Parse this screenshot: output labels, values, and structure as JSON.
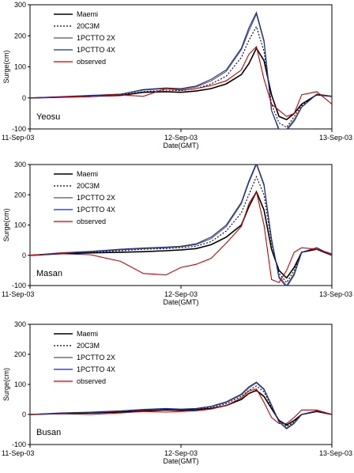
{
  "legend": {
    "entries": [
      {
        "label": "Maemi",
        "color": "#000000",
        "dash": ""
      },
      {
        "label": "20C3M",
        "color": "#000000",
        "dash": "2,2"
      },
      {
        "label": "1PCTTO 2X",
        "color": "#555555",
        "dash": ""
      },
      {
        "label": "1PCTTO 4X",
        "color": "#1a2a9a",
        "dash": ""
      },
      {
        "label": "observed",
        "color": "#cc0000",
        "dash": ""
      }
    ]
  },
  "chart_data": [
    {
      "type": "line",
      "station": "Yeosu",
      "ylabel": "Surge(cm)",
      "xlabel": "Date(GMT)",
      "ylim": [
        -100,
        300
      ],
      "yticks": [
        "300",
        "200",
        "100",
        "0",
        "-100"
      ],
      "xlim": [
        0,
        2
      ],
      "xticks": [
        "11-Sep-03",
        "12-Sep-03",
        "13-Sep-03"
      ],
      "x": [
        0,
        0.2,
        0.4,
        0.6,
        0.75,
        0.9,
        1.0,
        1.1,
        1.2,
        1.3,
        1.4,
        1.45,
        1.5,
        1.55,
        1.6,
        1.65,
        1.7,
        1.75,
        1.8,
        1.9,
        2.0
      ],
      "series": [
        {
          "name": "Maemi",
          "values": [
            0,
            2,
            5,
            8,
            18,
            20,
            18,
            22,
            30,
            45,
            75,
            110,
            160,
            120,
            10,
            -60,
            -70,
            -50,
            -20,
            10,
            5
          ]
        },
        {
          "name": "20C3M",
          "values": [
            0,
            3,
            6,
            10,
            20,
            25,
            23,
            30,
            45,
            70,
            130,
            185,
            230,
            150,
            -20,
            -80,
            -95,
            -60,
            -25,
            10,
            5
          ]
        },
        {
          "name": "1PCTTO 2X",
          "values": [
            0,
            3,
            7,
            12,
            25,
            30,
            28,
            35,
            55,
            85,
            155,
            215,
            270,
            180,
            -40,
            -100,
            -100,
            -70,
            -30,
            12,
            5
          ]
        },
        {
          "name": "1PCTTO 4X",
          "values": [
            0,
            4,
            8,
            12,
            27,
            32,
            30,
            38,
            60,
            90,
            160,
            225,
            275,
            185,
            -40,
            -105,
            -105,
            -75,
            -30,
            12,
            5
          ]
        },
        {
          "name": "observed",
          "values": [
            0,
            2,
            4,
            10,
            5,
            30,
            25,
            30,
            40,
            55,
            90,
            140,
            165,
            60,
            -20,
            -40,
            -60,
            -50,
            10,
            20,
            -20
          ]
        }
      ]
    },
    {
      "type": "line",
      "station": "Masan",
      "ylabel": "Surge(cm)",
      "xlabel": "Date(GMT)",
      "ylim": [
        -100,
        300
      ],
      "yticks": [
        "300",
        "200",
        "100",
        "0",
        "-100"
      ],
      "xlim": [
        0,
        2
      ],
      "xticks": [
        "11-Sep-03",
        "12-Sep-03",
        "13-Sep-03"
      ],
      "x": [
        0,
        0.2,
        0.4,
        0.6,
        0.75,
        0.9,
        1.0,
        1.1,
        1.2,
        1.3,
        1.4,
        1.45,
        1.5,
        1.55,
        1.6,
        1.65,
        1.7,
        1.75,
        1.8,
        1.9,
        2.0
      ],
      "series": [
        {
          "name": "Maemi",
          "values": [
            0,
            5,
            8,
            10,
            12,
            15,
            18,
            22,
            35,
            60,
            100,
            160,
            210,
            150,
            20,
            -50,
            -75,
            -40,
            10,
            20,
            0
          ]
        },
        {
          "name": "20C3M",
          "values": [
            0,
            6,
            10,
            15,
            20,
            22,
            25,
            30,
            45,
            80,
            140,
            200,
            260,
            200,
            40,
            -60,
            -90,
            -50,
            10,
            25,
            0
          ]
        },
        {
          "name": "1PCTTO 2X",
          "values": [
            0,
            7,
            12,
            18,
            22,
            25,
            28,
            35,
            55,
            95,
            170,
            240,
            300,
            230,
            50,
            -70,
            -100,
            -60,
            10,
            25,
            0
          ]
        },
        {
          "name": "1PCTTO 4X",
          "values": [
            0,
            8,
            13,
            20,
            24,
            27,
            30,
            38,
            60,
            100,
            175,
            245,
            305,
            235,
            55,
            -75,
            -105,
            -65,
            10,
            25,
            0
          ]
        },
        {
          "name": "observed",
          "values": [
            0,
            5,
            2,
            -20,
            -60,
            -65,
            -40,
            -30,
            -10,
            40,
            95,
            170,
            210,
            100,
            -80,
            -90,
            -50,
            10,
            25,
            20,
            5
          ]
        }
      ]
    },
    {
      "type": "line",
      "station": "Busan",
      "ylabel": "Surge(cm)",
      "xlabel": "Date(GMT)",
      "ylim": [
        -100,
        300
      ],
      "yticks": [
        "300",
        "200",
        "100",
        "0",
        "-100"
      ],
      "xlim": [
        0,
        2
      ],
      "xticks": [
        "11-Sep-03",
        "12-Sep-03",
        "13-Sep-03"
      ],
      "x": [
        0,
        0.2,
        0.4,
        0.6,
        0.75,
        0.9,
        1.0,
        1.1,
        1.2,
        1.3,
        1.4,
        1.45,
        1.5,
        1.55,
        1.6,
        1.65,
        1.7,
        1.75,
        1.8,
        1.9,
        2.0
      ],
      "series": [
        {
          "name": "Maemi",
          "values": [
            0,
            3,
            5,
            8,
            12,
            15,
            14,
            16,
            20,
            30,
            50,
            70,
            80,
            60,
            20,
            -20,
            -35,
            -20,
            0,
            10,
            0
          ]
        },
        {
          "name": "20C3M",
          "values": [
            0,
            4,
            6,
            10,
            15,
            18,
            16,
            18,
            24,
            36,
            60,
            80,
            95,
            75,
            25,
            -20,
            -40,
            -25,
            0,
            12,
            0
          ]
        },
        {
          "name": "1PCTTO 2X",
          "values": [
            0,
            4,
            7,
            11,
            16,
            19,
            17,
            19,
            26,
            40,
            65,
            88,
            105,
            82,
            30,
            -25,
            -45,
            -28,
            0,
            12,
            0
          ]
        },
        {
          "name": "1PCTTO 4X",
          "values": [
            0,
            5,
            8,
            12,
            17,
            20,
            18,
            20,
            27,
            42,
            68,
            92,
            108,
            85,
            32,
            -25,
            -48,
            -30,
            0,
            12,
            0
          ]
        },
        {
          "name": "observed",
          "values": [
            0,
            2,
            0,
            5,
            10,
            8,
            10,
            12,
            18,
            30,
            55,
            78,
            85,
            40,
            -10,
            -30,
            -30,
            -10,
            15,
            15,
            0
          ]
        }
      ]
    }
  ]
}
